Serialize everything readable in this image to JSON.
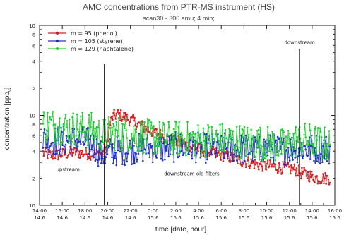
{
  "chart_data": {
    "type": "line",
    "title": "AMC concentrations from PTR-MS instrument (HS)",
    "subtitle": "scan30 - 300 amu; 4 min;",
    "xlabel": "time [date, hour]",
    "ylabel": "concentration [ppb",
    "ylabel_sub": "v",
    "ylabel_end": "]",
    "yscale": "log",
    "ylim": [
      1,
      100
    ],
    "y_decade_labels": [
      "10",
      "10",
      "10"
    ],
    "y_minor_labels": [
      "2",
      "4",
      "6",
      "8"
    ],
    "xlim_hours": [
      14,
      40
    ],
    "x_ticks": [
      {
        "h": 14,
        "time": "14:00",
        "date": "14.6"
      },
      {
        "h": 16,
        "time": "16:00",
        "date": "14.6"
      },
      {
        "h": 18,
        "time": "18:00",
        "date": "14.6"
      },
      {
        "h": 20,
        "time": "20:00",
        "date": "14.6"
      },
      {
        "h": 22,
        "time": "22:00",
        "date": "14.6"
      },
      {
        "h": 24,
        "time": "0:00",
        "date": "15.6"
      },
      {
        "h": 26,
        "time": "2:00",
        "date": "15.6"
      },
      {
        "h": 28,
        "time": "4:00",
        "date": "15.6"
      },
      {
        "h": 30,
        "time": "6:00",
        "date": "15.6"
      },
      {
        "h": 32,
        "time": "8:00",
        "date": "15.6"
      },
      {
        "h": 34,
        "time": "10:00",
        "date": "15.6"
      },
      {
        "h": 36,
        "time": "12:00",
        "date": "15.6"
      },
      {
        "h": 38,
        "time": "14:00",
        "date": "15.6"
      },
      {
        "h": 40,
        "time": "16:00",
        "date": "15.6"
      }
    ],
    "series": [
      {
        "name": "m = 95 (phenol)",
        "color": "#d42020",
        "x": [
          14.3,
          15.0,
          16.0,
          17.0,
          18.0,
          19.0,
          19.5,
          19.9,
          20.1,
          20.4,
          20.8,
          21.5,
          22.5,
          23.5,
          24.5,
          25.5,
          26.5,
          27.5,
          28.5,
          29.5,
          30.5,
          31.5,
          32.5,
          33.5,
          34.5,
          35.5,
          36.5,
          37.0,
          37.5,
          38.0,
          38.5,
          39.0,
          39.6
        ],
        "values": [
          3.8,
          3.6,
          3.7,
          3.9,
          3.8,
          3.7,
          3.8,
          4.5,
          7.0,
          9.5,
          10.3,
          9.6,
          8.2,
          7.0,
          6.2,
          5.4,
          4.9,
          4.4,
          4.1,
          3.8,
          3.5,
          3.2,
          3.0,
          2.8,
          2.7,
          2.6,
          2.5,
          2.3,
          2.2,
          2.1,
          2.0,
          2.0,
          2.0
        ]
      },
      {
        "name": "m = 105 (styrene)",
        "color": "#2030c8",
        "x": [
          14.3,
          15.5,
          17.0,
          18.5,
          19.5,
          20.5,
          22.0,
          23.5,
          25.0,
          26.5,
          28.0,
          29.5,
          31.0,
          32.5,
          34.0,
          35.5,
          36.5,
          37.5,
          38.5,
          39.6
        ],
        "values": [
          5.5,
          5.2,
          5.3,
          5.0,
          3.6,
          4.0,
          4.2,
          4.4,
          4.3,
          4.5,
          4.4,
          4.3,
          4.4,
          4.2,
          4.3,
          4.1,
          4.4,
          4.2,
          4.3,
          4.2
        ]
      },
      {
        "name": "m = 129 (naphtalene)",
        "color": "#22cc33",
        "x": [
          14.3,
          15.5,
          17.0,
          18.5,
          19.5,
          20.5,
          22.0,
          23.5,
          25.0,
          26.5,
          28.0,
          29.5,
          31.0,
          32.5,
          34.0,
          35.5,
          36.5,
          37.5,
          38.5,
          39.6
        ],
        "values": [
          8.0,
          7.6,
          7.2,
          7.0,
          6.0,
          6.4,
          6.1,
          5.8,
          5.5,
          5.6,
          5.3,
          5.4,
          5.2,
          5.0,
          4.9,
          4.5,
          5.2,
          5.3,
          5.0,
          4.6
        ]
      }
    ],
    "annotations": [
      {
        "text": "downstream",
        "at_h": 36.9,
        "y": 62,
        "line_from": 1,
        "line_to": 55
      },
      {
        "text": "upstream",
        "at_h": 16.5,
        "y": 2.4,
        "vline_h": 19.7
      },
      {
        "text": "downstream  old filters",
        "at_h": 27.4,
        "y": 2.15
      }
    ],
    "legend_position": "top-left",
    "grid": false
  }
}
